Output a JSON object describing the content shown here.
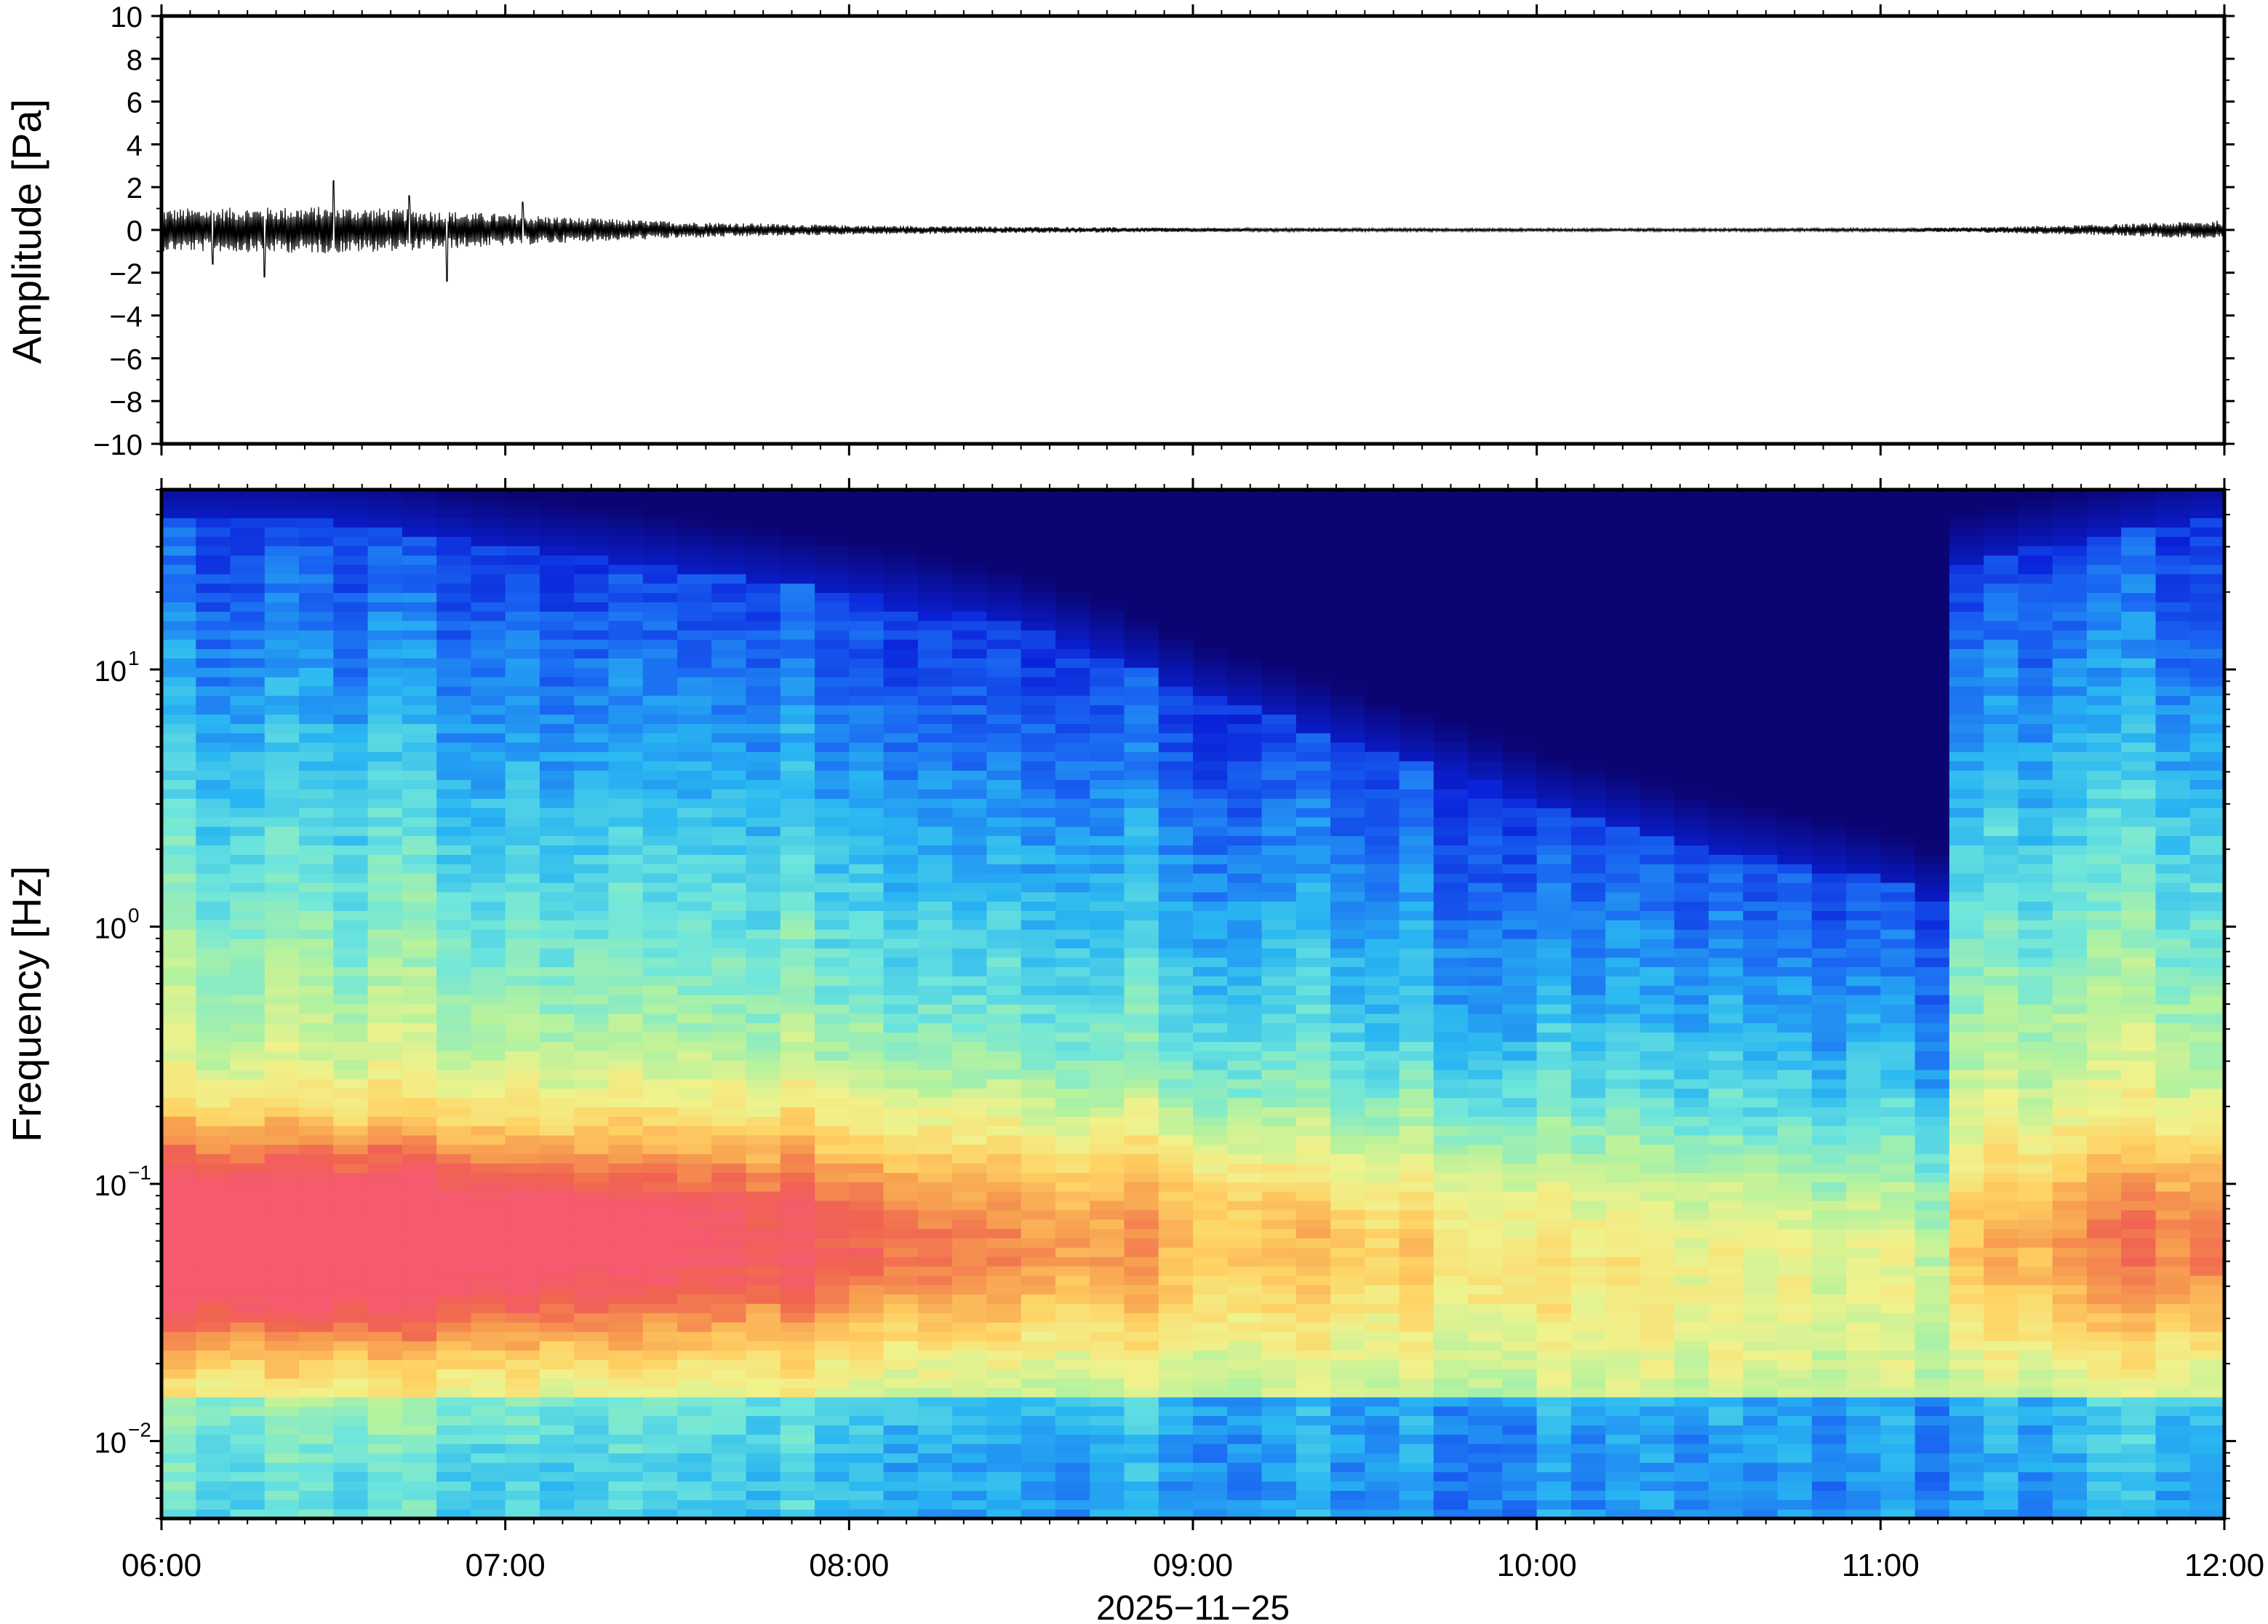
{
  "chart_data": [
    {
      "type": "line",
      "name": "waveform",
      "ylabel": "Amplitude [Pa]",
      "ylim": [
        -10,
        10
      ],
      "yticks": [
        10,
        8,
        6,
        4,
        2,
        0,
        -2,
        -4,
        -6,
        -8,
        -10
      ],
      "ytick_labels": [
        "10",
        "8",
        "6",
        "4",
        "2",
        "0",
        "−2",
        "−4",
        "−6",
        "−8",
        "−10"
      ],
      "x_start": "06:00",
      "x_end": "12:00",
      "grid": false,
      "envelope": {
        "x_hours": [
          0.0,
          0.25,
          0.5,
          0.75,
          1.0,
          1.25,
          1.5,
          1.75,
          2.0,
          2.5,
          3.0,
          3.5,
          4.0,
          4.5,
          5.0,
          5.25,
          5.5,
          5.75,
          6.0
        ],
        "amplitude": [
          1.0,
          1.05,
          1.1,
          0.95,
          0.75,
          0.55,
          0.4,
          0.3,
          0.22,
          0.15,
          0.1,
          0.08,
          0.07,
          0.07,
          0.08,
          0.12,
          0.2,
          0.3,
          0.45
        ]
      },
      "peaks": [
        {
          "x_hours": 0.5,
          "value": 2.3
        },
        {
          "x_hours": 0.3,
          "value": -2.2
        },
        {
          "x_hours": 0.83,
          "value": -2.4
        },
        {
          "x_hours": 1.05,
          "value": 1.3
        },
        {
          "x_hours": 0.72,
          "value": 1.6
        },
        {
          "x_hours": 0.15,
          "value": -1.6
        }
      ]
    },
    {
      "type": "heatmap",
      "name": "spectrogram",
      "ylabel": "Frequency [Hz]",
      "yscale": "log",
      "ylim": [
        0.005,
        50
      ],
      "yticks": [
        {
          "base": "10",
          "exp": "1",
          "value": 10
        },
        {
          "base": "10",
          "exp": "0",
          "value": 1
        },
        {
          "base": "10",
          "exp": "−1",
          "value": 0.1
        },
        {
          "base": "10",
          "exp": "−2",
          "value": 0.01
        }
      ],
      "colormap": [
        "#0a0573",
        "#0a21d9",
        "#1a66f2",
        "#29b6f2",
        "#6ee6dc",
        "#b4f29e",
        "#f0f28c",
        "#ffd264",
        "#f7a050",
        "#f06450",
        "#f55a6e"
      ],
      "spectral_level_note": "upper frequency edge in Hz per time column",
      "upper_edge": {
        "x_hours": [
          0.0,
          0.5,
          1.0,
          1.5,
          2.0,
          2.5,
          3.0,
          3.5,
          4.0,
          4.5,
          5.0,
          5.2,
          5.21,
          5.5,
          6.0
        ],
        "hz": [
          40,
          38,
          30,
          25,
          20,
          15,
          8,
          5,
          3,
          2,
          1.5,
          1.2,
          25,
          30,
          40
        ]
      },
      "warm_band": {
        "x_hours": [
          0.0,
          0.5,
          1.0,
          1.5,
          2.0,
          2.5,
          3.0,
          3.5,
          4.0,
          4.5,
          5.0,
          5.2,
          5.21,
          5.5,
          6.0
        ],
        "strength": [
          1.0,
          1.0,
          0.9,
          0.75,
          0.6,
          0.45,
          0.3,
          0.2,
          0.15,
          0.1,
          0.08,
          0.08,
          0.2,
          0.35,
          0.55
        ]
      }
    }
  ],
  "xaxis": {
    "ticks": [
      "06:00",
      "07:00",
      "08:00",
      "09:00",
      "10:00",
      "11:00",
      "12:00"
    ],
    "date_label": "2025−11−25"
  }
}
